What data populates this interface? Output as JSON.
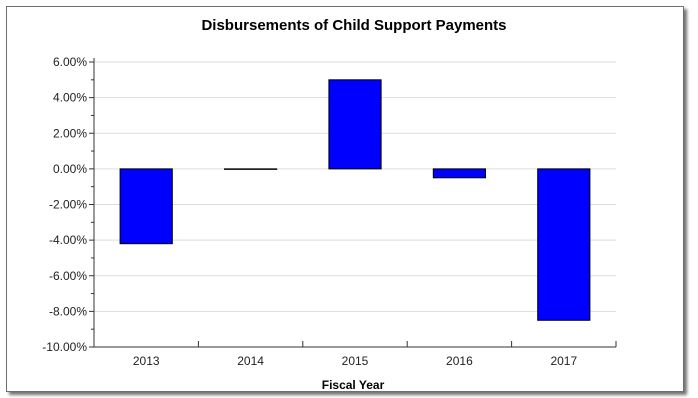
{
  "chart_data": {
    "type": "bar",
    "title": "Disbursements of Child Support Payments",
    "xlabel": "Fiscal Year",
    "ylabel": "",
    "categories": [
      "2013",
      "2014",
      "2015",
      "2016",
      "2017"
    ],
    "values": [
      -4.2,
      0.0,
      5.0,
      -0.5,
      -8.5
    ],
    "ylim": [
      -10,
      6
    ],
    "yticks": [
      6,
      4,
      2,
      0,
      -2,
      -4,
      -6,
      -8,
      -10
    ],
    "ytick_labels": [
      "6.00%",
      "4.00%",
      "2.00%",
      "0.00%",
      "-2.00%",
      "-4.00%",
      "-6.00%",
      "-8.00%",
      "-10.00%"
    ],
    "grid": true,
    "legend": "none",
    "colors": {
      "bar_fill": "#0000ff",
      "bar_stroke": "#000000",
      "grid": "#dddddd",
      "axis": "#333333"
    }
  }
}
